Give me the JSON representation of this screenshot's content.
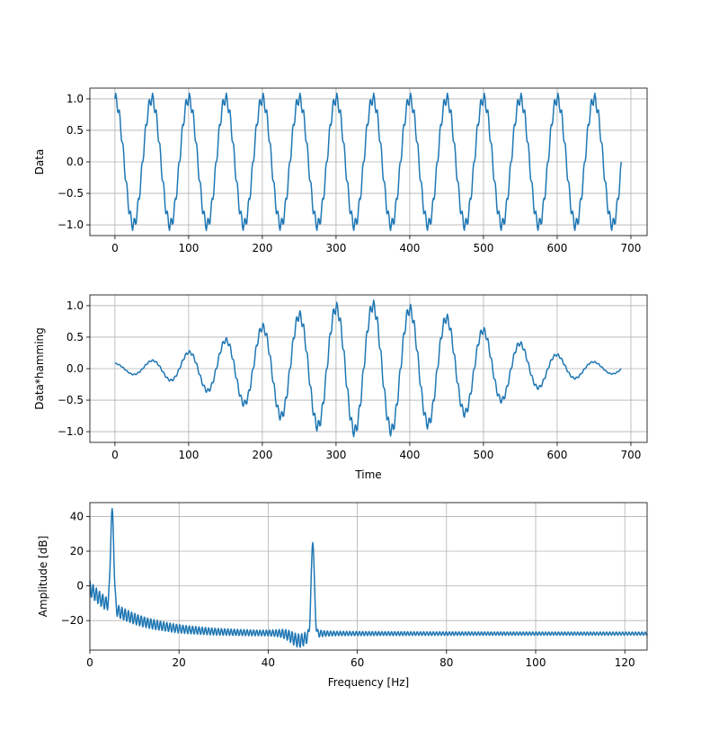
{
  "figure": {
    "background": "#ffffff",
    "line_color": "#1f77b4"
  },
  "chart_data": [
    {
      "type": "line",
      "id": "data",
      "title": "",
      "xlabel": "",
      "ylabel": "Data",
      "xlim": [
        -34,
        722
      ],
      "ylim": [
        -1.17,
        1.17
      ],
      "grid": true,
      "xticks": [
        0,
        100,
        200,
        300,
        400,
        500,
        600,
        700
      ],
      "xtick_labels": [
        "0",
        "100",
        "200",
        "300",
        "400",
        "500",
        "600",
        "700"
      ],
      "yticks": [
        -1.0,
        -0.5,
        0.0,
        0.5,
        1.0
      ],
      "ytick_labels": [
        "−1.0",
        "−0.5",
        "0.0",
        "0.5",
        "1.0"
      ],
      "series": [
        {
          "name": "data",
          "generator": "sum_of_sines",
          "n_samples": 688,
          "sample_rate_hz": 250,
          "components": [
            {
              "freq_hz": 5,
              "amplitude": 1.0,
              "phase": 1.5708
            },
            {
              "freq_hz": 50,
              "amplitude": 0.1,
              "phase": 0.0
            }
          ],
          "window": "none"
        }
      ]
    },
    {
      "type": "line",
      "id": "windowed",
      "title": "",
      "xlabel": "Time",
      "ylabel": "Data*hamming",
      "xlim": [
        -34,
        722
      ],
      "ylim": [
        -1.17,
        1.17
      ],
      "grid": true,
      "xticks": [
        0,
        100,
        200,
        300,
        400,
        500,
        600,
        700
      ],
      "xtick_labels": [
        "0",
        "100",
        "200",
        "300",
        "400",
        "500",
        "600",
        "700"
      ],
      "yticks": [
        -1.0,
        -0.5,
        0.0,
        0.5,
        1.0
      ],
      "ytick_labels": [
        "−1.0",
        "−0.5",
        "0.0",
        "0.5",
        "1.0"
      ],
      "series": [
        {
          "name": "data*hamming",
          "generator": "sum_of_sines",
          "n_samples": 688,
          "sample_rate_hz": 250,
          "components": [
            {
              "freq_hz": 5,
              "amplitude": 1.0,
              "phase": 1.5708
            },
            {
              "freq_hz": 50,
              "amplitude": 0.1,
              "phase": 0.0
            }
          ],
          "window": "hamming"
        }
      ]
    },
    {
      "type": "line",
      "id": "spectrum",
      "title": "",
      "xlabel": "Frequency [Hz]",
      "ylabel": "Amplitude [dB]",
      "xlim": [
        0,
        125
      ],
      "ylim": [
        -37,
        48
      ],
      "grid": true,
      "xticks": [
        0,
        20,
        40,
        60,
        80,
        100,
        120
      ],
      "xtick_labels": [
        "0",
        "20",
        "40",
        "60",
        "80",
        "100",
        "120"
      ],
      "yticks": [
        -20,
        0,
        20,
        40
      ],
      "ytick_labels": [
        "−20",
        "0",
        "20",
        "40"
      ],
      "series": [
        {
          "name": "spectrum",
          "generator": "spectrum_db",
          "n_points": 1200,
          "floor_db": -27.5,
          "peaks": [
            {
              "freq_hz": 5,
              "level_db": 44.5
            },
            {
              "freq_hz": 50,
              "level_db": 25
            }
          ],
          "dip": {
            "freq_hz": 47,
            "level_db": -33
          }
        }
      ]
    }
  ]
}
